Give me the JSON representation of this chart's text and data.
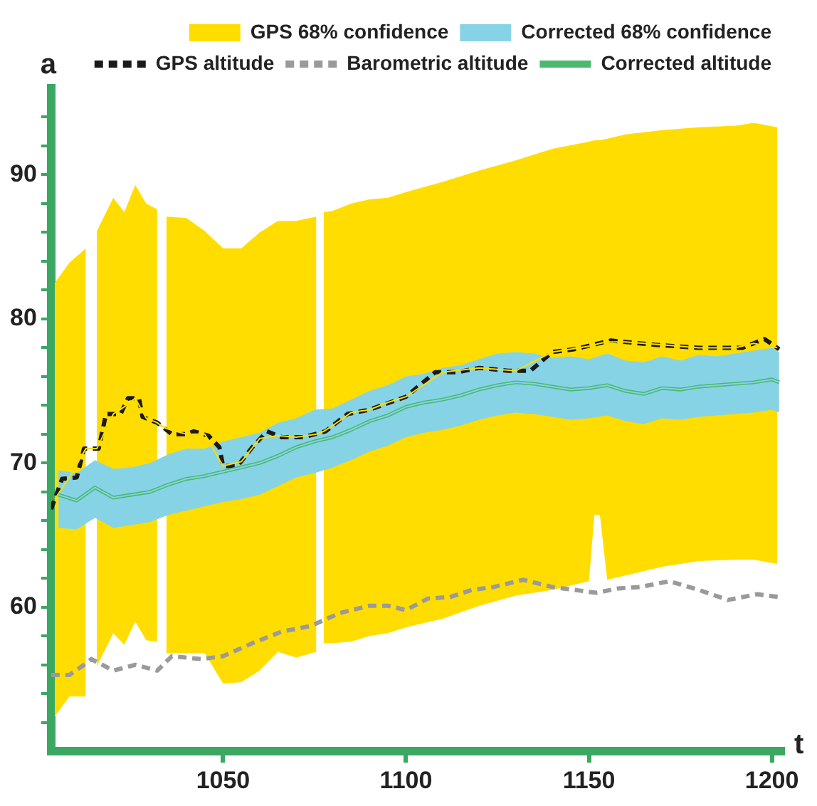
{
  "chart_data": {
    "type": "line",
    "xlabel": "t",
    "ylabel": "a",
    "xlim": [
      1003,
      1203
    ],
    "ylim": [
      50,
      96
    ],
    "xticks": [
      1050,
      1100,
      1150,
      1200
    ],
    "yticks": [
      {
        "value": 52,
        "label": null
      },
      {
        "value": 54,
        "label": null
      },
      {
        "value": 56,
        "label": null
      },
      {
        "value": 58,
        "label": null
      },
      60,
      {
        "value": 62,
        "label": null
      },
      {
        "value": 64,
        "label": null
      },
      {
        "value": 66,
        "label": null
      },
      {
        "value": 68,
        "label": null
      },
      70,
      {
        "value": 72,
        "label": null
      },
      {
        "value": 74,
        "label": null
      },
      {
        "value": 76,
        "label": null
      },
      {
        "value": 78,
        "label": null
      },
      80,
      {
        "value": 82,
        "label": null
      },
      {
        "value": 84,
        "label": null
      },
      {
        "value": 86,
        "label": null
      },
      {
        "value": 88,
        "label": null
      },
      90,
      {
        "value": 92,
        "label": null
      },
      {
        "value": 94,
        "label": null
      }
    ],
    "grid": false,
    "legend": "top right",
    "marker": "none",
    "series": [
      {
        "name": "GPS 68% confidence",
        "type": "line",
        "color": "#ffdd00",
        "x": [
          1004,
          1008,
          1012.5,
          1014,
          1015.5,
          1020,
          1023,
          1026,
          1029,
          1032,
          1033,
          1034.5,
          1040,
          1045,
          1050,
          1055,
          1060,
          1065,
          1070,
          1075.5,
          1076.5,
          1077.5,
          1080,
          1085,
          1090,
          1095,
          1100,
          1110,
          1120,
          1130,
          1140,
          1150,
          1151.5,
          1153,
          1155,
          1160,
          1170,
          1180,
          1190,
          1195,
          1201.5
        ],
        "values": [
          67.5,
          69.0,
          71.0,
          71.0,
          71.0,
          73.4,
          73.9,
          74.5,
          73.1,
          72.8,
          72.6,
          72.4,
          72.0,
          72.0,
          69.8,
          70.1,
          71.7,
          71.9,
          71.8,
          72.0,
          72.1,
          72.2,
          72.6,
          73.5,
          73.7,
          74.2,
          74.6,
          76.3,
          76.6,
          76.4,
          77.7,
          78.1,
          78.2,
          78.3,
          78.4,
          78.4,
          78.2,
          78.0,
          78.0,
          78.3,
          78.0
        ],
        "upper": [
          82.5,
          83.9,
          84.9,
          null,
          86.1,
          88.4,
          87.4,
          89.3,
          88.0,
          87.6,
          null,
          87.1,
          87.0,
          86.1,
          84.9,
          84.9,
          86.0,
          86.8,
          86.8,
          87.1,
          null,
          87.4,
          87.5,
          88.0,
          88.3,
          88.4,
          88.8,
          89.5,
          90.3,
          91.0,
          91.8,
          92.3,
          92.4,
          92.4,
          92.5,
          92.8,
          93.1,
          93.3,
          93.4,
          93.6,
          93.3
        ],
        "lower": [
          52.4,
          53.8,
          53.8,
          null,
          55.9,
          58.2,
          57.4,
          59.0,
          57.7,
          57.6,
          null,
          56.8,
          56.8,
          56.8,
          54.7,
          54.8,
          55.6,
          56.9,
          56.5,
          56.9,
          null,
          57.5,
          57.5,
          57.6,
          58.0,
          58.2,
          58.6,
          59.2,
          60.1,
          60.8,
          61.2,
          61.8,
          66.4,
          66.4,
          61.9,
          62.2,
          62.8,
          63.2,
          63.3,
          63.3,
          63.0
        ]
      },
      {
        "name": "Corrected 68% confidence",
        "type": "line",
        "color": "#87d3e6",
        "x": [
          1005,
          1010,
          1015,
          1020,
          1025,
          1030,
          1035,
          1040,
          1045,
          1050,
          1055,
          1060,
          1065,
          1070,
          1075,
          1080,
          1085,
          1090,
          1095,
          1100,
          1105,
          1110,
          1115,
          1120,
          1125,
          1130,
          1135,
          1140,
          1145,
          1150,
          1155,
          1160,
          1165,
          1170,
          1175,
          1180,
          1185,
          1190,
          1195,
          1200,
          1202
        ],
        "values": [
          67.8,
          67.4,
          68.3,
          67.6,
          67.8,
          68.0,
          68.5,
          68.9,
          69.1,
          69.4,
          69.7,
          70.0,
          70.5,
          71.1,
          71.5,
          71.8,
          72.3,
          72.9,
          73.3,
          73.9,
          74.2,
          74.4,
          74.7,
          75.1,
          75.4,
          75.6,
          75.5,
          75.3,
          75.1,
          75.2,
          75.4,
          75.0,
          74.8,
          75.2,
          75.1,
          75.3,
          75.4,
          75.5,
          75.6,
          75.8,
          75.6
        ],
        "upper": [
          69.5,
          69.3,
          70.2,
          69.6,
          69.7,
          70.0,
          70.6,
          71.0,
          71.0,
          71.5,
          71.8,
          72.1,
          72.8,
          73.1,
          73.7,
          73.8,
          74.4,
          75.0,
          75.4,
          76.0,
          76.2,
          76.6,
          76.8,
          77.2,
          77.6,
          77.7,
          77.6,
          77.3,
          77.4,
          77.2,
          77.6,
          77.1,
          77.0,
          77.4,
          77.1,
          77.5,
          77.4,
          77.6,
          77.8,
          78.0,
          77.7
        ],
        "lower": [
          65.5,
          65.4,
          66.2,
          65.5,
          65.7,
          65.9,
          66.4,
          66.7,
          67.0,
          67.3,
          67.5,
          67.8,
          68.4,
          69.0,
          69.3,
          69.7,
          70.2,
          70.8,
          71.2,
          71.8,
          72.1,
          72.3,
          72.6,
          73.0,
          73.3,
          73.5,
          73.4,
          73.2,
          73.0,
          73.1,
          73.3,
          72.9,
          72.7,
          73.1,
          73.0,
          73.2,
          73.3,
          73.4,
          73.5,
          73.7,
          73.5
        ]
      },
      {
        "name": "GPS altitude",
        "type": "line",
        "color": "#1a1a1a",
        "line_style": "dashed",
        "x": [
          1003,
          1006,
          1010,
          1012,
          1016,
          1018,
          1022,
          1024,
          1027,
          1028,
          1032,
          1036,
          1040,
          1042,
          1046,
          1049,
          1050,
          1054,
          1058,
          1062,
          1066,
          1072,
          1078,
          1084,
          1090,
          1100,
          1108,
          1114,
          1120,
          1128,
          1134,
          1140,
          1146,
          1156,
          1168,
          1180,
          1192,
          1198,
          1202
        ],
        "values": [
          66.8,
          68.9,
          69.0,
          71.0,
          71.0,
          73.4,
          73.4,
          74.5,
          74.5,
          73.2,
          72.8,
          72.0,
          72.0,
          72.2,
          71.9,
          71.1,
          69.8,
          69.8,
          71.1,
          72.2,
          71.8,
          71.8,
          72.2,
          73.4,
          73.7,
          74.6,
          76.3,
          76.3,
          76.6,
          76.4,
          76.4,
          77.7,
          77.9,
          78.5,
          78.2,
          78.0,
          78.0,
          78.6,
          77.9
        ]
      },
      {
        "name": "Barometric altitude",
        "type": "line",
        "color": "#9a9a9a",
        "line_style": "dashed",
        "x": [
          1003,
          1008,
          1012,
          1014,
          1020,
          1026,
          1032,
          1036,
          1044,
          1050,
          1058,
          1066,
          1074,
          1082,
          1090,
          1095,
          1100,
          1106,
          1112,
          1118,
          1124,
          1132,
          1140,
          1146,
          1152,
          1158,
          1164,
          1172,
          1180,
          1188,
          1196,
          1202
        ],
        "values": [
          55.3,
          55.3,
          56.0,
          56.4,
          55.6,
          56.0,
          55.6,
          56.6,
          56.4,
          56.6,
          57.5,
          58.3,
          58.7,
          59.6,
          60.1,
          60.1,
          59.8,
          60.6,
          60.7,
          61.2,
          61.4,
          61.9,
          61.4,
          61.2,
          61.0,
          61.3,
          61.4,
          61.8,
          61.2,
          60.5,
          60.9,
          60.7
        ]
      },
      {
        "name": "Corrected altitude",
        "type": "line",
        "color": "#4cb971",
        "line_style": "solid",
        "x": [
          1005,
          1010,
          1015,
          1020,
          1025,
          1030,
          1035,
          1040,
          1045,
          1050,
          1055,
          1060,
          1065,
          1070,
          1075,
          1080,
          1085,
          1090,
          1095,
          1100,
          1105,
          1110,
          1115,
          1120,
          1125,
          1130,
          1135,
          1140,
          1145,
          1150,
          1155,
          1160,
          1165,
          1170,
          1175,
          1180,
          1185,
          1190,
          1195,
          1200,
          1202
        ],
        "values": [
          67.8,
          67.4,
          68.3,
          67.6,
          67.8,
          68.0,
          68.5,
          68.9,
          69.1,
          69.4,
          69.7,
          70.0,
          70.5,
          71.1,
          71.5,
          71.8,
          72.3,
          72.9,
          73.3,
          73.9,
          74.2,
          74.4,
          74.7,
          75.1,
          75.4,
          75.6,
          75.5,
          75.3,
          75.1,
          75.2,
          75.4,
          75.0,
          74.8,
          75.2,
          75.1,
          75.3,
          75.4,
          75.5,
          75.6,
          75.8,
          75.6
        ]
      }
    ]
  }
}
